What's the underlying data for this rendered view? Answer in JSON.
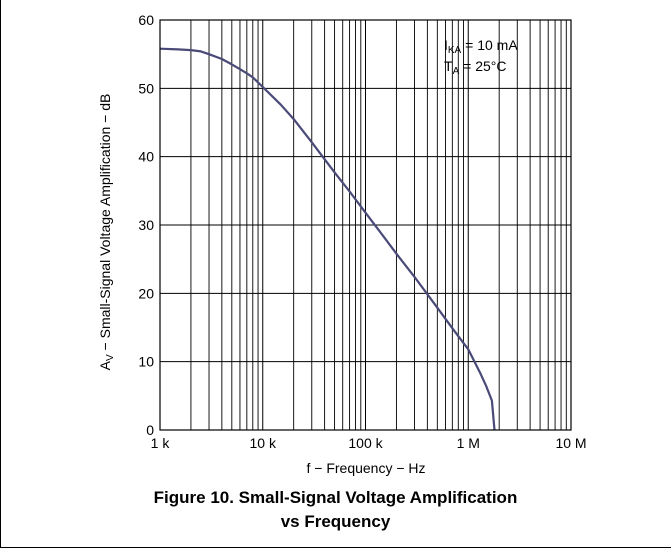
{
  "figure_caption": {
    "line1": "Figure 10. Small-Signal Voltage Amplification",
    "line2": "vs Frequency"
  },
  "chart_data": {
    "type": "line",
    "xlabel": "f − Frequency − Hz",
    "ylabel_prefix": "A",
    "ylabel_sub": "V",
    "ylabel_rest": " − Small-Signal Voltage Amplification − dB",
    "x_scale": "log",
    "xlim": [
      1000,
      10000000
    ],
    "ylim": [
      0,
      60
    ],
    "x_ticks": [
      {
        "value": 1000,
        "label": "1 k"
      },
      {
        "value": 10000,
        "label": "10 k"
      },
      {
        "value": 100000,
        "label": "100 k"
      },
      {
        "value": 1000000,
        "label": "1 M"
      },
      {
        "value": 10000000,
        "label": "10 M"
      }
    ],
    "y_ticks": [
      {
        "value": 0,
        "label": "0"
      },
      {
        "value": 10,
        "label": "10"
      },
      {
        "value": 20,
        "label": "20"
      },
      {
        "value": 30,
        "label": "30"
      },
      {
        "value": 40,
        "label": "40"
      },
      {
        "value": 50,
        "label": "50"
      },
      {
        "value": 60,
        "label": "60"
      }
    ],
    "grid": true,
    "line_color": "#4a4a78",
    "annotations": [
      {
        "main": "I",
        "sub": "KA",
        "rest": " = 10 mA"
      },
      {
        "main": "T",
        "sub": "A",
        "rest": " = 25°C"
      }
    ],
    "series": [
      {
        "x": [
          1000,
          1500,
          2000,
          2500,
          3000,
          4000,
          5000,
          6000,
          7000,
          8000,
          10000,
          15000,
          20000,
          30000,
          50000,
          70000,
          100000,
          150000,
          200000,
          300000,
          500000,
          700000,
          1000000,
          1300000,
          1500000,
          1700000,
          1800000
        ],
        "y": [
          55.8,
          55.7,
          55.6,
          55.4,
          55.0,
          54.3,
          53.5,
          52.8,
          52.2,
          51.6,
          50.2,
          47.6,
          45.5,
          42.1,
          37.7,
          34.9,
          31.8,
          28.3,
          25.8,
          22.4,
          17.9,
          14.9,
          11.8,
          8.4,
          6.4,
          4.3,
          0
        ]
      }
    ]
  }
}
